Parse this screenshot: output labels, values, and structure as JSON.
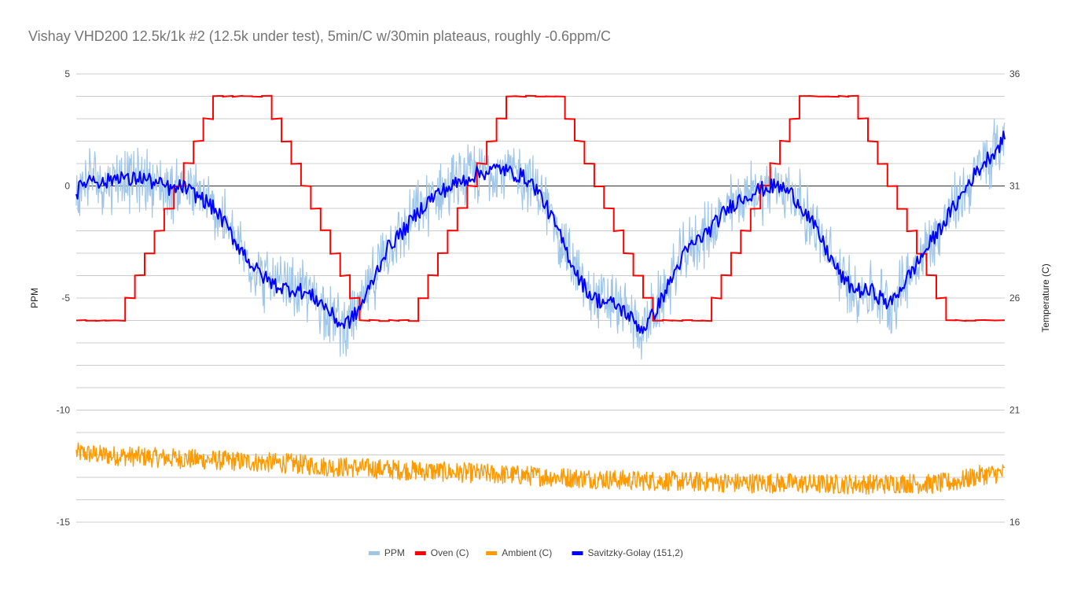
{
  "chart_data": {
    "type": "line",
    "title": "Vishay VHD200 12.5k/1k #2 (12.5k under test), 5min/C w/30min plateaus, roughly -0.6ppm/C",
    "ylabel_left": "PPM",
    "ylabel_right": "Temperature (C)",
    "xlabel": "",
    "ylim_left": [
      -15,
      5
    ],
    "ylim_right": [
      16,
      36
    ],
    "left_ticks": [
      "5",
      "0",
      "-5",
      "-10",
      "-15"
    ],
    "right_ticks": [
      "36",
      "31",
      "26",
      "21",
      "16"
    ],
    "grid": true,
    "legend_position": "bottom",
    "x_label_note": "x axis has no labels; series sampled at 240 equal steps",
    "series": [
      {
        "name": "PPM",
        "axis": "left",
        "color": "#9fc5e8",
        "noise": 1.3,
        "values": [
          -0.3,
          0.2,
          0.4,
          0.1,
          0.3,
          0.5,
          0.2,
          0.4,
          0.3,
          0.1,
          0.0,
          -0.2,
          0.0,
          -0.3,
          -0.5,
          -0.8,
          -1.2,
          -1.8,
          -2.5,
          -3.0,
          -3.6,
          -4.0,
          -4.3,
          -4.5,
          -4.6,
          -4.6,
          -4.8,
          -5.0,
          -5.3,
          -5.8,
          -6.2,
          -6.0,
          -5.5,
          -4.7,
          -3.8,
          -2.9,
          -2.4,
          -2.0,
          -1.5,
          -1.0,
          -0.6,
          -0.3,
          -0.1,
          0.1,
          0.3,
          0.5,
          0.6,
          0.7,
          0.8,
          0.6,
          0.5,
          0.3,
          -0.1,
          -0.8,
          -1.6,
          -2.5,
          -3.4,
          -4.2,
          -4.8,
          -5.1,
          -5.2,
          -5.3,
          -5.6,
          -6.0,
          -6.4,
          -5.9,
          -5.2,
          -4.4,
          -3.6,
          -2.9,
          -2.5,
          -2.2,
          -1.8,
          -1.3,
          -0.9,
          -0.6,
          -0.4,
          -0.2,
          -0.1,
          0.0,
          -0.1,
          -0.4,
          -0.9,
          -1.5,
          -2.2,
          -3.0,
          -3.7,
          -4.3,
          -4.6,
          -4.7,
          -4.7,
          -5.0,
          -5.3,
          -4.7,
          -4.1,
          -3.5,
          -2.9,
          -2.3,
          -1.7,
          -1.1,
          -0.5,
          0.2,
          0.7,
          1.2,
          1.6,
          2.2
        ]
      },
      {
        "name": "Oven (C)",
        "axis": "right",
        "color": "#ff0000",
        "values": [
          25,
          25,
          25,
          25,
          25,
          26,
          27,
          28,
          29,
          30,
          31,
          32,
          33,
          34,
          35,
          35,
          35,
          35,
          35,
          35,
          34,
          33,
          32,
          31,
          30,
          29,
          28,
          27,
          26,
          25,
          25,
          25,
          25,
          25,
          25,
          26,
          27,
          28,
          29,
          30,
          31,
          32,
          33,
          34,
          35,
          35,
          35,
          35,
          35,
          35,
          34,
          33,
          32,
          31,
          30,
          29,
          28,
          27,
          26,
          25,
          25,
          25,
          25,
          25,
          25,
          26,
          27,
          28,
          29,
          30,
          31,
          32,
          33,
          34,
          35,
          35,
          35,
          35,
          35,
          35,
          34,
          33,
          32,
          31,
          30,
          29,
          28,
          27,
          26,
          25,
          25,
          25,
          25,
          25,
          25
        ]
      },
      {
        "name": "Ambient (C)",
        "axis": "right",
        "color": "#ff9900",
        "noise": 0.45,
        "values": [
          19.1,
          19.0,
          18.95,
          18.9,
          18.85,
          18.8,
          18.75,
          18.7,
          18.65,
          18.6,
          18.5,
          18.45,
          18.4,
          18.35,
          18.3,
          18.25,
          18.2,
          18.15,
          18.1,
          18.05,
          18.0,
          17.95,
          17.9,
          17.85,
          17.85,
          17.8,
          17.8,
          17.75,
          17.75,
          17.75,
          17.7,
          17.7,
          17.7,
          17.7,
          17.75,
          17.7,
          17.8,
          18.1,
          18.2
        ]
      },
      {
        "name": "Savitzky-Golay (151,2)",
        "axis": "left",
        "color": "#0000ff",
        "noise": 0.35,
        "values": [
          -0.3,
          0.2,
          0.4,
          0.1,
          0.3,
          0.5,
          0.2,
          0.4,
          0.3,
          0.1,
          0.0,
          -0.2,
          0.0,
          -0.3,
          -0.5,
          -0.8,
          -1.2,
          -1.8,
          -2.5,
          -3.0,
          -3.6,
          -4.0,
          -4.3,
          -4.5,
          -4.6,
          -4.6,
          -4.8,
          -5.0,
          -5.3,
          -5.8,
          -6.2,
          -6.0,
          -5.5,
          -4.7,
          -3.8,
          -2.9,
          -2.4,
          -2.0,
          -1.5,
          -1.0,
          -0.6,
          -0.3,
          -0.1,
          0.1,
          0.3,
          0.5,
          0.6,
          0.7,
          0.8,
          0.6,
          0.5,
          0.3,
          -0.1,
          -0.8,
          -1.6,
          -2.5,
          -3.4,
          -4.2,
          -4.8,
          -5.1,
          -5.2,
          -5.3,
          -5.6,
          -6.0,
          -6.4,
          -5.9,
          -5.2,
          -4.4,
          -3.6,
          -2.9,
          -2.5,
          -2.2,
          -1.8,
          -1.3,
          -0.9,
          -0.6,
          -0.4,
          -0.2,
          -0.1,
          0.0,
          -0.1,
          -0.4,
          -0.9,
          -1.5,
          -2.2,
          -3.0,
          -3.7,
          -4.3,
          -4.6,
          -4.7,
          -4.7,
          -5.0,
          -5.3,
          -4.7,
          -4.1,
          -3.5,
          -2.9,
          -2.3,
          -1.7,
          -1.1,
          -0.5,
          0.2,
          0.7,
          1.2,
          1.6,
          2.2
        ]
      }
    ]
  },
  "colors": {
    "grid": "#cccccc",
    "zero_line": "#333333",
    "title": "#757575"
  }
}
